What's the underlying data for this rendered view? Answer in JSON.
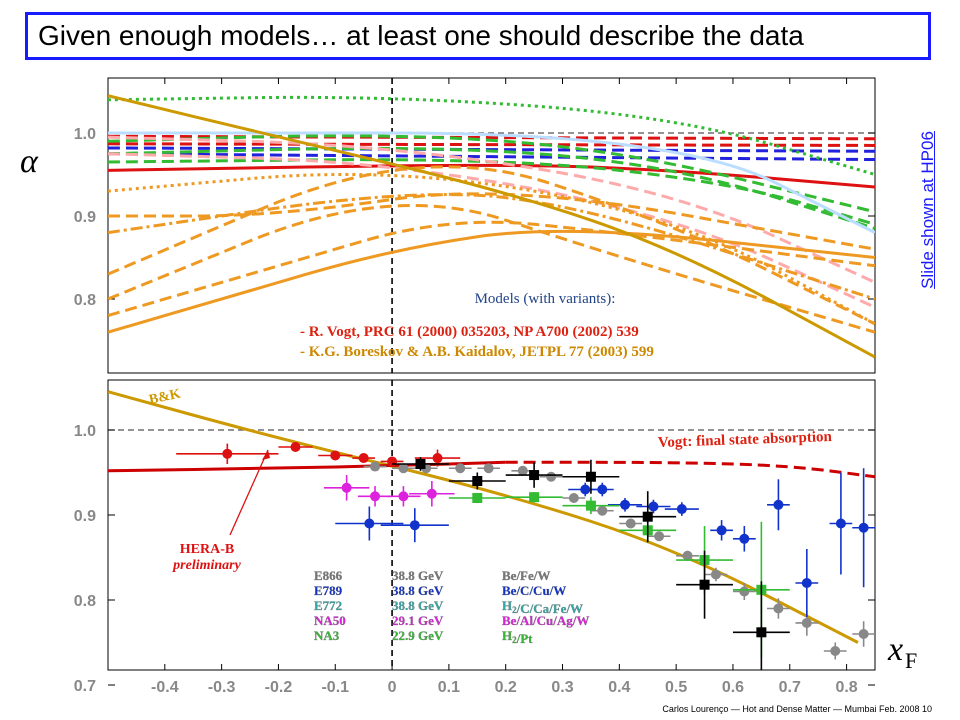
{
  "slide": {
    "title": "Given enough models… at least one should describe the data",
    "side_note": "Slide shown at HP06",
    "footer": "Carlos Lourenço — Hot and Dense Matter — Mumbai Feb. 2008   10"
  },
  "chart_data": [
    {
      "type": "line",
      "panel": "top",
      "ylabel": "α",
      "ylim": [
        0.72,
        1.05
      ],
      "xlim": [
        -0.5,
        0.85
      ],
      "yticks": [
        "0.8",
        "0.9",
        "1.0"
      ],
      "reference_lines": [
        1.0,
        0.0
      ],
      "annotation_title": "Models (with variants):",
      "annotations": [
        "- R. Vogt, PRC 61 (2000) 035203, NP A700 (2002) 539",
        "- K.G. Boreskov & A.B. Kaidalov, JETPL 77 (2003) 599"
      ],
      "series": [
        {
          "color": "#dd1111",
          "dash": "solid",
          "x": [
            -0.5,
            0.2,
            0.5,
            0.85
          ],
          "y": [
            0.955,
            0.963,
            0.955,
            0.935
          ]
        },
        {
          "color": "#dd1111",
          "dash": "dash",
          "x": [
            -0.5,
            0.85
          ],
          "y": [
            0.987,
            0.985
          ]
        },
        {
          "color": "#dd1111",
          "dash": "dash",
          "x": [
            -0.5,
            0.85
          ],
          "y": [
            0.996,
            0.993
          ]
        },
        {
          "color": "#2222dd",
          "dash": "dash",
          "x": [
            -0.5,
            0.85
          ],
          "y": [
            0.975,
            0.968
          ]
        },
        {
          "color": "#2222dd",
          "dash": "dash",
          "x": [
            -0.5,
            0.85
          ],
          "y": [
            0.982,
            0.978
          ]
        },
        {
          "color": "#33bb33",
          "dash": "dot",
          "x": [
            -0.5,
            0.0,
            0.5,
            0.85
          ],
          "y": [
            1.04,
            1.045,
            1.02,
            0.95
          ]
        },
        {
          "color": "#33bb33",
          "dash": "dash",
          "x": [
            -0.5,
            0.0,
            0.4,
            0.85
          ],
          "y": [
            0.99,
            1.0,
            0.98,
            0.905
          ]
        },
        {
          "color": "#33bb33",
          "dash": "dash",
          "x": [
            -0.5,
            0.1,
            0.5,
            0.85
          ],
          "y": [
            0.975,
            0.985,
            0.96,
            0.885
          ]
        },
        {
          "color": "#33bb33",
          "dash": "dash",
          "x": [
            -0.5,
            0.2,
            0.6,
            0.85
          ],
          "y": [
            0.965,
            0.97,
            0.94,
            0.89
          ]
        },
        {
          "color": "#ffaaaa",
          "dash": "dash",
          "x": [
            -0.5,
            0.0,
            0.5,
            0.85
          ],
          "y": [
            0.995,
            0.985,
            0.93,
            0.82
          ]
        },
        {
          "color": "#ffaaaa",
          "dash": "dash",
          "x": [
            -0.5,
            0.0,
            0.5,
            0.85
          ],
          "y": [
            0.975,
            0.965,
            0.9,
            0.79
          ]
        },
        {
          "color": "#bbddff",
          "dash": "solid",
          "x": [
            -0.5,
            0.5,
            0.85
          ],
          "y": [
            1.0,
            1.0,
            0.88
          ]
        },
        {
          "color": "#ee9922",
          "dash": "dash",
          "x": [
            -0.5,
            0.05,
            0.5,
            0.85
          ],
          "y": [
            0.83,
            0.99,
            0.89,
            0.77
          ]
        },
        {
          "color": "#ee9922",
          "dash": "dash",
          "x": [
            -0.5,
            0.0,
            0.4,
            0.85
          ],
          "y": [
            0.8,
            0.94,
            0.85,
            0.76
          ]
        },
        {
          "color": "#ee9922",
          "dash": "dashdot",
          "x": [
            -0.5,
            0.0,
            0.3,
            0.85
          ],
          "y": [
            0.88,
            0.93,
            0.92,
            0.8
          ]
        },
        {
          "color": "#ee9922",
          "dash": "dot",
          "x": [
            -0.5,
            0.0,
            0.5,
            0.85
          ],
          "y": [
            0.93,
            0.96,
            0.9,
            0.77
          ]
        },
        {
          "color": "#ee9922",
          "dash": "solid",
          "x": [
            -0.5,
            -0.3,
            0.0,
            0.3,
            0.85
          ],
          "y": [
            0.76,
            0.8,
            0.86,
            0.89,
            0.85
          ]
        },
        {
          "color": "#ee9922",
          "dash": "dash",
          "x": [
            -0.5,
            -0.2,
            0.1,
            0.4,
            0.85
          ],
          "y": [
            0.78,
            0.84,
            0.9,
            0.88,
            0.84
          ]
        },
        {
          "color": "#ee9922",
          "dash": "dash",
          "x": [
            -0.5,
            -0.2,
            0.2,
            0.85
          ],
          "y": [
            0.9,
            0.9,
            0.94,
            0.86
          ]
        },
        {
          "color": "#cc9900",
          "dash": "solid",
          "x": [
            -0.5,
            -0.2,
            0.2,
            0.5,
            0.85
          ],
          "y": [
            1.045,
            0.995,
            0.93,
            0.86,
            0.73
          ]
        }
      ]
    },
    {
      "type": "scatter",
      "panel": "bottom",
      "xlabel": "x_F",
      "ylim": [
        0.7,
        1.05
      ],
      "xlim": [
        -0.5,
        0.85
      ],
      "xticks": [
        "-0.4",
        "-0.3",
        "-0.2",
        "-0.1",
        "0",
        "0.1",
        "0.2",
        "0.3",
        "0.4",
        "0.5",
        "0.6",
        "0.7",
        "0.8"
      ],
      "yticks": [
        "0.7",
        "0.8",
        "0.9",
        "1.0"
      ],
      "reference_lines": [
        1.0,
        0.0
      ],
      "curve_labels": [
        "B&K",
        "Vogt: final state absorption"
      ],
      "curves": [
        {
          "name": "B&K",
          "color": "#cc9900",
          "dash": "solid",
          "x": [
            -0.5,
            -0.2,
            0.2,
            0.5,
            0.82
          ],
          "y": [
            1.045,
            0.99,
            0.925,
            0.86,
            0.75
          ]
        },
        {
          "name": "Vogt: final state absorption",
          "color": "#cc0000",
          "dash": "dash",
          "x": [
            0.2,
            0.5,
            0.7,
            0.85
          ],
          "y": [
            0.962,
            0.962,
            0.958,
            0.945
          ]
        },
        {
          "color": "#cc0000",
          "dash": "solid",
          "x": [
            -0.5,
            -0.2,
            0.0,
            0.2
          ],
          "y": [
            0.952,
            0.955,
            0.958,
            0.962
          ]
        }
      ],
      "hera_b": {
        "label": "HERA-B",
        "sublabel": "preliminary"
      },
      "legend": [
        {
          "experiment": "E866",
          "energy": "38.8 GeV",
          "targets": "Be/Fe/W",
          "color": "#777777"
        },
        {
          "experiment": "E789",
          "energy": "38.8 GeV",
          "targets": "Be/C/Cu/W",
          "color": "#1133cc"
        },
        {
          "experiment": "E772",
          "energy": "38.8 GeV",
          "targets": "H2/C/Ca/Fe/W",
          "color": "#33aaaa"
        },
        {
          "experiment": "NA50",
          "energy": "29.1 GeV",
          "targets": "Be/Al/Cu/Ag/W",
          "color": "#dd22dd"
        },
        {
          "experiment": "NA3",
          "energy": "22.9 GeV",
          "targets": "H2/Pt",
          "color": "#33bb33"
        }
      ],
      "series": [
        {
          "name": "HERA-B",
          "color": "#dd1111",
          "marker": "circle",
          "x": [
            -0.29,
            -0.17,
            -0.1,
            -0.05,
            0.0,
            0.08
          ],
          "y": [
            0.972,
            0.98,
            0.97,
            0.967,
            0.963,
            0.967
          ],
          "xerr": [
            0.09,
            0.03,
            0.03,
            0.02,
            0.02,
            0.04
          ],
          "yerr": [
            0.012,
            0.004,
            0.004,
            0.004,
            0.004,
            0.01
          ]
        },
        {
          "name": "E866",
          "color": "#888888",
          "marker": "circle",
          "x": [
            -0.03,
            0.02,
            0.06,
            0.12,
            0.17,
            0.23,
            0.28,
            0.32,
            0.37,
            0.42,
            0.47,
            0.52,
            0.57,
            0.62,
            0.68,
            0.73,
            0.78,
            0.83
          ],
          "y": [
            0.957,
            0.955,
            0.955,
            0.955,
            0.955,
            0.952,
            0.945,
            0.92,
            0.905,
            0.89,
            0.875,
            0.852,
            0.83,
            0.81,
            0.79,
            0.773,
            0.74,
            0.76
          ],
          "xerr": [
            0.02,
            0.02,
            0.02,
            0.02,
            0.02,
            0.02,
            0.02,
            0.02,
            0.02,
            0.02,
            0.02,
            0.02,
            0.02,
            0.02,
            0.02,
            0.02,
            0.02,
            0.02
          ],
          "yerr": [
            0.003,
            0.003,
            0.003,
            0.003,
            0.003,
            0.003,
            0.003,
            0.004,
            0.004,
            0.004,
            0.005,
            0.006,
            0.008,
            0.01,
            0.012,
            0.015,
            0.01,
            0.015
          ]
        },
        {
          "name": "E789",
          "color": "#1133cc",
          "marker": "circle",
          "x": [
            -0.04,
            0.04,
            0.34,
            0.37,
            0.41,
            0.46,
            0.51,
            0.58,
            0.62,
            0.68,
            0.73,
            0.79,
            0.83
          ],
          "y": [
            0.89,
            0.888,
            0.93,
            0.93,
            0.912,
            0.91,
            0.907,
            0.882,
            0.872,
            0.912,
            0.82,
            0.89,
            0.885
          ],
          "xerr": [
            0.06,
            0.06,
            0.03,
            0.02,
            0.03,
            0.03,
            0.03,
            0.02,
            0.02,
            0.02,
            0.02,
            0.02,
            0.02
          ],
          "yerr": [
            0.02,
            0.02,
            0.008,
            0.008,
            0.008,
            0.008,
            0.008,
            0.012,
            0.015,
            0.03,
            0.04,
            0.06,
            0.07
          ]
        },
        {
          "name": "NA3",
          "color": "#33bb33",
          "marker": "square",
          "x": [
            0.15,
            0.25,
            0.35,
            0.45,
            0.55,
            0.65
          ],
          "y": [
            0.92,
            0.921,
            0.911,
            0.882,
            0.847,
            0.812
          ],
          "xerr": [
            0.05,
            0.05,
            0.05,
            0.05,
            0.05,
            0.05
          ],
          "yerr": [
            0.006,
            0.006,
            0.01,
            0.015,
            0.04,
            0.08
          ]
        },
        {
          "name": "NA50",
          "color": "#dd22dd",
          "marker": "circle",
          "x": [
            -0.08,
            -0.03,
            0.02,
            0.07
          ],
          "y": [
            0.932,
            0.922,
            0.922,
            0.925
          ],
          "xerr": [
            0.04,
            0.03,
            0.03,
            0.04
          ],
          "yerr": [
            0.015,
            0.012,
            0.012,
            0.015
          ]
        },
        {
          "name": "E772",
          "color": "#000000",
          "marker": "square",
          "x": [
            0.05,
            0.15,
            0.25,
            0.35,
            0.45,
            0.55,
            0.65
          ],
          "y": [
            0.96,
            0.94,
            0.947,
            0.945,
            0.898,
            0.818,
            0.762
          ],
          "xerr": [
            0.05,
            0.05,
            0.05,
            0.05,
            0.05,
            0.05,
            0.05
          ],
          "yerr": [
            0.008,
            0.01,
            0.015,
            0.02,
            0.03,
            0.04,
            0.06
          ]
        }
      ]
    }
  ]
}
